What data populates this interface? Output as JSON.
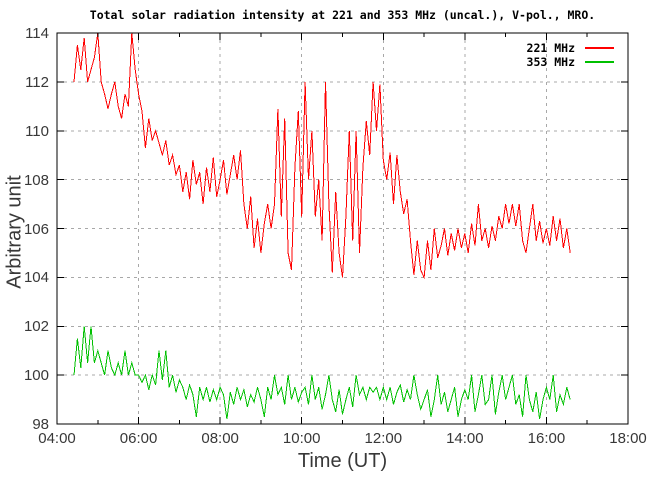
{
  "chart_data": {
    "type": "line",
    "title": "Total solar radiation intensity at 221 and 353 MHz (uncal.), V-pol., MRO.",
    "xlabel": "Time (UT)",
    "ylabel": "Arbitrary unit",
    "xlim": [
      4,
      18
    ],
    "ylim": [
      98,
      114
    ],
    "grid": true,
    "grid_color": "#a8a8a8",
    "axis_color": "#000000",
    "tick_label_color": "#383838",
    "background_color": "#ffffff",
    "x_ticks": {
      "values": [
        4,
        6,
        8,
        10,
        12,
        14,
        16,
        18
      ],
      "labels": [
        "04:00",
        "06:00",
        "08:00",
        "10:00",
        "12:00",
        "14:00",
        "16:00",
        "18:00"
      ]
    },
    "x_minor_tick_values": [
      5,
      7,
      9,
      11,
      13,
      15,
      17
    ],
    "y_ticks": {
      "values": [
        98,
        100,
        102,
        104,
        106,
        108,
        110,
        112,
        114
      ],
      "labels": [
        "98",
        "100",
        "102",
        "104",
        "106",
        "108",
        "110",
        "112",
        "114"
      ]
    },
    "legend": {
      "position": "top-right-inside",
      "entries": [
        {
          "label": "221 MHz",
          "color": "#ff0000"
        },
        {
          "label": "353 MHz",
          "color": "#00c000"
        }
      ]
    },
    "series": [
      {
        "name": "221 MHz",
        "color": "#ff0000",
        "start_hour": 4.4167,
        "step_hours": 0.08333,
        "values": [
          112.0,
          113.5,
          112.5,
          113.8,
          112.0,
          112.5,
          113.0,
          114.0,
          112.0,
          111.5,
          110.9,
          111.5,
          112.0,
          111.0,
          110.5,
          111.5,
          111.0,
          114.0,
          112.5,
          111.5,
          110.8,
          109.3,
          110.5,
          109.6,
          110.0,
          109.5,
          109.0,
          109.6,
          108.6,
          109.0,
          108.2,
          108.6,
          107.5,
          108.3,
          107.2,
          108.8,
          107.8,
          108.3,
          107.0,
          108.5,
          107.5,
          108.9,
          107.3,
          108.0,
          108.8,
          107.4,
          108.2,
          109.0,
          108.0,
          109.2,
          107.0,
          106.0,
          107.3,
          105.2,
          106.4,
          105.0,
          106.2,
          107.0,
          106.0,
          107.0,
          110.9,
          106.5,
          110.5,
          105.0,
          104.3,
          108.5,
          110.8,
          106.5,
          112.0,
          108.0,
          110.0,
          106.5,
          108.0,
          105.5,
          112.0,
          107.0,
          104.2,
          107.5,
          105.0,
          104.0,
          106.5,
          110.0,
          105.5,
          110.0,
          105.0,
          108.5,
          110.4,
          109.0,
          112.0,
          110.0,
          111.9,
          108.8,
          108.0,
          109.1,
          107.0,
          109.0,
          107.5,
          106.6,
          107.2,
          105.5,
          104.1,
          105.5,
          104.3,
          104.0,
          105.5,
          104.3,
          106.0,
          104.8,
          105.3,
          106.0,
          104.9,
          105.8,
          105.1,
          106.0,
          105.2,
          105.8,
          105.0,
          106.2,
          105.3,
          107.0,
          105.5,
          106.0,
          105.2,
          106.1,
          105.5,
          106.5,
          106.0,
          107.0,
          106.2,
          107.0,
          106.1,
          107.0,
          105.5,
          105.0,
          106.0,
          107.0,
          105.5,
          106.3,
          105.4,
          106.0,
          105.3,
          106.5,
          105.5,
          106.4,
          105.2,
          106.0,
          105.0
        ]
      },
      {
        "name": "353 MHz",
        "color": "#00c000",
        "start_hour": 4.4167,
        "step_hours": 0.08333,
        "values": [
          100.0,
          101.5,
          100.3,
          102.0,
          100.5,
          102.0,
          100.5,
          101.0,
          100.5,
          100.0,
          101.0,
          100.3,
          100.0,
          100.5,
          100.0,
          101.0,
          100.0,
          100.5,
          100.0,
          100.0,
          99.7,
          100.0,
          99.4,
          100.0,
          99.6,
          101.0,
          99.8,
          101.0,
          99.5,
          100.0,
          99.3,
          99.8,
          99.5,
          99.0,
          99.6,
          99.2,
          98.3,
          99.5,
          99.0,
          99.5,
          98.9,
          99.4,
          99.0,
          99.5,
          99.2,
          98.2,
          99.3,
          98.8,
          99.5,
          99.0,
          99.4,
          98.7,
          99.2,
          98.9,
          99.5,
          99.0,
          98.3,
          99.5,
          99.0,
          100.0,
          99.2,
          99.5,
          98.8,
          100.0,
          99.0,
          99.5,
          98.9,
          99.3,
          99.5,
          98.8,
          100.0,
          99.0,
          99.5,
          98.6,
          99.2,
          100.0,
          99.0,
          98.5,
          99.4,
          98.4,
          99.0,
          99.5,
          98.7,
          100.0,
          99.2,
          99.5,
          99.0,
          99.5,
          99.3,
          99.5,
          99.0,
          99.5,
          99.0,
          99.5,
          98.8,
          99.3,
          99.6,
          98.9,
          99.4,
          99.0,
          100.0,
          99.2,
          98.6,
          99.0,
          99.4,
          98.3,
          99.0,
          100.0,
          98.8,
          99.3,
          98.5,
          99.0,
          99.5,
          98.3,
          99.0,
          99.4,
          99.0,
          100.0,
          98.5,
          99.2,
          100.0,
          98.8,
          99.0,
          100.0,
          98.4,
          99.3,
          100.0,
          99.0,
          99.5,
          100.0,
          98.8,
          99.2,
          98.3,
          100.0,
          99.0,
          98.5,
          99.3,
          98.2,
          99.0,
          99.5,
          99.0,
          100.0,
          98.5,
          99.2,
          98.8,
          99.5,
          99.0
        ]
      }
    ]
  }
}
